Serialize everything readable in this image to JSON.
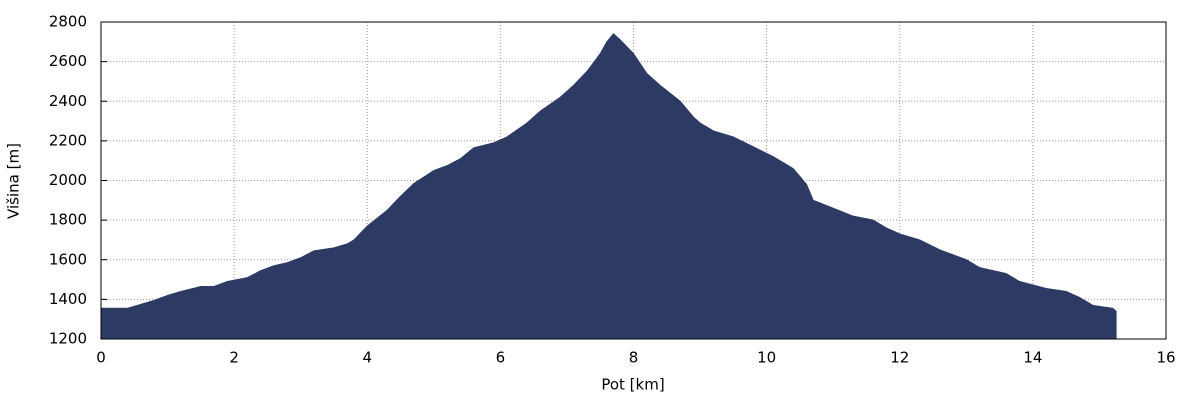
{
  "chart_data": {
    "type": "area",
    "xlabel": "Pot [km]",
    "ylabel": "Višina [m]",
    "x": [
      0,
      0.4,
      0.6,
      0.8,
      1.0,
      1.2,
      1.5,
      1.7,
      1.9,
      2.2,
      2.4,
      2.6,
      2.8,
      3.0,
      3.2,
      3.5,
      3.7,
      3.8,
      4.0,
      4.3,
      4.5,
      4.7,
      5.0,
      5.2,
      5.4,
      5.6,
      5.9,
      6.1,
      6.4,
      6.6,
      6.9,
      7.1,
      7.3,
      7.5,
      7.6,
      7.7,
      7.8,
      8.0,
      8.2,
      8.4,
      8.7,
      8.9,
      9.0,
      9.2,
      9.5,
      9.8,
      10.1,
      10.4,
      10.6,
      10.7,
      11.0,
      11.3,
      11.6,
      11.8,
      12.0,
      12.3,
      12.6,
      13.0,
      13.2,
      13.6,
      13.8,
      14.2,
      14.5,
      14.7,
      14.9,
      15.2,
      15.25
    ],
    "values": [
      1355,
      1355,
      1375,
      1395,
      1420,
      1440,
      1465,
      1465,
      1490,
      1510,
      1545,
      1570,
      1585,
      1610,
      1645,
      1660,
      1680,
      1700,
      1770,
      1850,
      1920,
      1985,
      2050,
      2075,
      2110,
      2165,
      2190,
      2220,
      2290,
      2350,
      2420,
      2480,
      2550,
      2640,
      2700,
      2740,
      2710,
      2640,
      2540,
      2480,
      2400,
      2320,
      2290,
      2250,
      2220,
      2170,
      2120,
      2060,
      1980,
      1900,
      1860,
      1820,
      1800,
      1760,
      1730,
      1700,
      1650,
      1600,
      1560,
      1530,
      1490,
      1455,
      1440,
      1410,
      1370,
      1355,
      1340
    ],
    "color": "#2d3a64",
    "xlim": [
      0,
      16
    ],
    "xticks": [
      0,
      2,
      4,
      6,
      8,
      10,
      12,
      14,
      16
    ],
    "ylim": [
      1200,
      2800
    ],
    "yticks": [
      1200,
      1400,
      1600,
      1800,
      2000,
      2200,
      2400,
      2600,
      2800
    ],
    "grid": true
  }
}
